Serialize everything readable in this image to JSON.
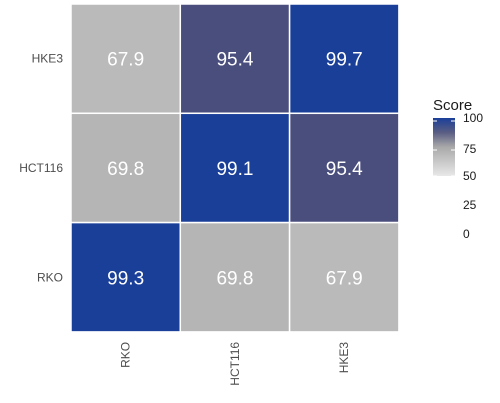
{
  "chart_data": {
    "type": "heatmap",
    "x_categories": [
      "RKO",
      "HCT116",
      "HKE3"
    ],
    "y_categories": [
      "HKE3",
      "HCT116",
      "RKO"
    ],
    "values": [
      [
        67.9,
        95.4,
        99.7
      ],
      [
        69.8,
        99.1,
        95.4
      ],
      [
        99.3,
        69.8,
        67.9
      ]
    ],
    "labels": [
      [
        "67.9",
        "95.4",
        "99.7"
      ],
      [
        "69.8",
        "99.1",
        "95.4"
      ],
      [
        "99.3",
        "69.8",
        "67.9"
      ]
    ],
    "legend": {
      "title": "Score",
      "ticks": [
        "100",
        "75",
        "50",
        "25",
        "0"
      ],
      "gradient_range": [
        50,
        100
      ],
      "position": "right"
    },
    "colors": {
      "low": "#e6e6e6",
      "mid": "#b5b5b5",
      "midhigh": "#4a4e7d",
      "high": "#1a3f99",
      "gridline": "#ffffff"
    }
  }
}
